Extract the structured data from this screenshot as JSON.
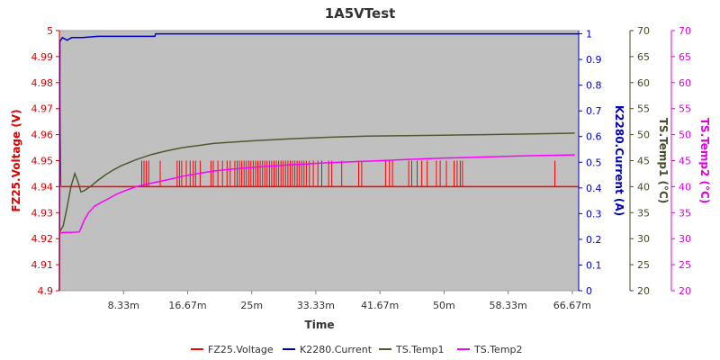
{
  "chart_data": {
    "type": "line",
    "title": "1A5VTest",
    "xlabel": "Time",
    "x_ticks": [
      "8.33m",
      "16.67m",
      "25m",
      "33.33m",
      "41.67m",
      "50m",
      "58.33m",
      "66.67m"
    ],
    "x_tick_values": [
      8.333,
      16.667,
      25,
      33.333,
      41.667,
      50,
      58.333,
      66.667
    ],
    "xlim": [
      0,
      67.5
    ],
    "grid": false,
    "legend": "bottom",
    "axes": [
      {
        "label": "FZ25.Voltage (V)",
        "color": "#e00000",
        "ylim": [
          4.9,
          5.0
        ],
        "ticks": [
          "4.9",
          "4.91",
          "4.92",
          "4.93",
          "4.94",
          "4.95",
          "4.96",
          "4.97",
          "4.98",
          "4.99",
          "5"
        ]
      },
      {
        "label": "K2280.Current (A)",
        "color": "#0000c0",
        "ylim": [
          0,
          1.0125
        ],
        "ticks": [
          "0",
          "0.1",
          "0.2",
          "0.3",
          "0.4",
          "0.5",
          "0.6",
          "0.7",
          "0.8",
          "0.9",
          "1"
        ]
      },
      {
        "label": "TS.Temp1 (°C)",
        "color": "#4a4a2a",
        "ylim": [
          20,
          70
        ],
        "ticks": [
          "20",
          "25",
          "30",
          "35",
          "40",
          "45",
          "50",
          "55",
          "60",
          "65",
          "70"
        ]
      },
      {
        "label": "TS.Temp2 (°C)",
        "color": "#e000e0",
        "ylim": [
          20,
          70
        ],
        "ticks": [
          "20",
          "25",
          "30",
          "35",
          "40",
          "45",
          "50",
          "55",
          "60",
          "65",
          "70"
        ]
      }
    ],
    "series": [
      {
        "name": "FZ25.Voltage",
        "color": "#ff0000",
        "axis": 0,
        "base": 4.94,
        "peak": 4.95,
        "initial": [
          [
            0.05,
            4.98
          ],
          [
            0.2,
            4.94
          ]
        ],
        "spikes": [
          10.7,
          11.0,
          11.3,
          11.6,
          13.1,
          15.3,
          15.6,
          15.9,
          16.5,
          17.0,
          17.4,
          17.7,
          18.3,
          19.7,
          20.0,
          20.6,
          21.2,
          21.8,
          22.2,
          22.8,
          23.1,
          23.4,
          23.7,
          24.0,
          24.3,
          24.6,
          24.9,
          25.2,
          25.5,
          25.8,
          26.1,
          26.4,
          26.7,
          27.0,
          27.3,
          27.6,
          27.9,
          28.2,
          28.5,
          28.8,
          29.1,
          29.4,
          29.7,
          30.0,
          30.3,
          30.6,
          30.9,
          31.2,
          31.5,
          31.8,
          32.1,
          32.5,
          33.0,
          33.6,
          34.1,
          35.0,
          35.4,
          36.7,
          38.9,
          39.3,
          42.4,
          42.9,
          43.3,
          45.4,
          45.8,
          46.5,
          47.1,
          47.8,
          49.0,
          49.5,
          50.3,
          51.3,
          51.7,
          52.1,
          52.4,
          64.4
        ]
      },
      {
        "name": "K2280.Current",
        "color": "#0000cc",
        "axis": 1,
        "points": [
          [
            0,
            0
          ],
          [
            0.06,
            0.97
          ],
          [
            0.4,
            0.985
          ],
          [
            1.0,
            0.975
          ],
          [
            1.6,
            0.985
          ],
          [
            3.0,
            0.985
          ],
          [
            5.0,
            0.99
          ],
          [
            8.0,
            0.99
          ],
          [
            12.4,
            0.99
          ],
          [
            12.5,
            1.0
          ],
          [
            67.5,
            1.0
          ]
        ]
      },
      {
        "name": "TS.Temp1",
        "color": "#4d5a2e",
        "axis": 2,
        "points": [
          [
            0,
            31.2
          ],
          [
            0.5,
            32.5
          ],
          [
            1.0,
            36.0
          ],
          [
            1.5,
            40.0
          ],
          [
            2.0,
            42.5
          ],
          [
            2.4,
            41.0
          ],
          [
            2.8,
            39.0
          ],
          [
            3.2,
            39.2
          ],
          [
            4.0,
            40.0
          ],
          [
            5.0,
            41.2
          ],
          [
            6.0,
            42.3
          ],
          [
            7.0,
            43.2
          ],
          [
            8.0,
            44.0
          ],
          [
            9.0,
            44.6
          ],
          [
            10.0,
            45.2
          ],
          [
            12.0,
            46.2
          ],
          [
            14.0,
            46.9
          ],
          [
            16.0,
            47.5
          ],
          [
            18.0,
            47.9
          ],
          [
            20.0,
            48.3
          ],
          [
            25.0,
            48.8
          ],
          [
            30.0,
            49.2
          ],
          [
            35.0,
            49.5
          ],
          [
            40.0,
            49.7
          ],
          [
            45.0,
            49.8
          ],
          [
            50.0,
            49.9
          ],
          [
            55.0,
            50.0
          ],
          [
            60.0,
            50.1
          ],
          [
            67.0,
            50.3
          ]
        ]
      },
      {
        "name": "TS.Temp2",
        "color": "#ff00ff",
        "axis": 3,
        "points": [
          [
            0,
            31.0
          ],
          [
            0.5,
            31.2
          ],
          [
            1.5,
            31.2
          ],
          [
            2.6,
            31.3
          ],
          [
            3.2,
            33.5
          ],
          [
            3.8,
            35.0
          ],
          [
            4.6,
            36.3
          ],
          [
            5.5,
            37.0
          ],
          [
            6.5,
            37.8
          ],
          [
            7.5,
            38.6
          ],
          [
            8.5,
            39.2
          ],
          [
            10.0,
            40.0
          ],
          [
            12.0,
            40.7
          ],
          [
            14.0,
            41.3
          ],
          [
            16.0,
            42.0
          ],
          [
            18.0,
            42.5
          ],
          [
            20.0,
            43.0
          ],
          [
            22.0,
            43.3
          ],
          [
            25.0,
            43.7
          ],
          [
            30.0,
            44.2
          ],
          [
            35.0,
            44.6
          ],
          [
            40.0,
            44.9
          ],
          [
            45.0,
            45.2
          ],
          [
            50.0,
            45.5
          ],
          [
            55.0,
            45.7
          ],
          [
            60.0,
            45.9
          ],
          [
            67.0,
            46.1
          ]
        ]
      }
    ]
  }
}
